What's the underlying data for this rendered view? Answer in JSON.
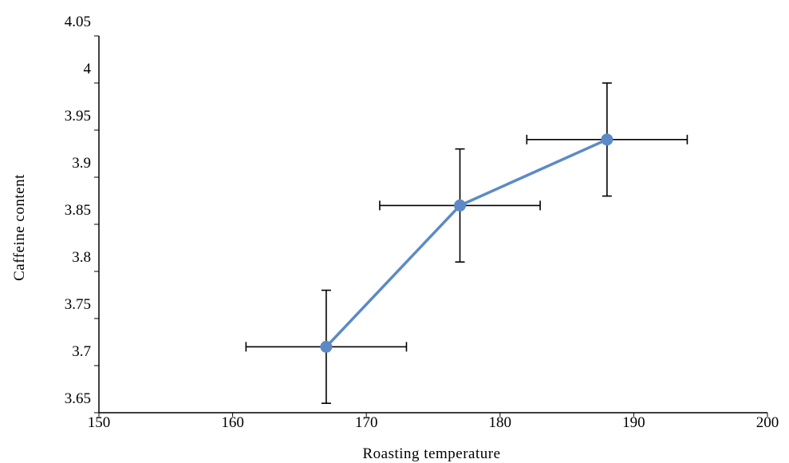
{
  "chart_data": {
    "type": "line",
    "title": "",
    "xlabel": "Roasting  temperature",
    "ylabel": "Caffeine  content",
    "xlim": [
      150,
      200
    ],
    "ylim": [
      3.65,
      4.05
    ],
    "x_ticks": [
      150,
      160,
      170,
      180,
      190,
      200
    ],
    "x_tick_labels": [
      "150",
      "160",
      "170",
      "180",
      "190",
      "200"
    ],
    "y_ticks": [
      3.65,
      3.7,
      3.75,
      3.8,
      3.85,
      3.9,
      3.95,
      4.0,
      4.05
    ],
    "y_tick_labels": [
      "3.65",
      "3.7",
      "3.75",
      "3.8",
      "3.85",
      "3.9",
      "3.95",
      "4",
      "4.05"
    ],
    "grid": false,
    "legend": "none",
    "series": [
      {
        "x": [
          167,
          177,
          188
        ],
        "y": [
          3.72,
          3.87,
          3.94
        ],
        "x_error": [
          6,
          6,
          6
        ],
        "y_error": [
          0.06,
          0.06,
          0.06
        ],
        "color": "#5b8ac6",
        "error_bar_color": "#000000"
      }
    ]
  }
}
